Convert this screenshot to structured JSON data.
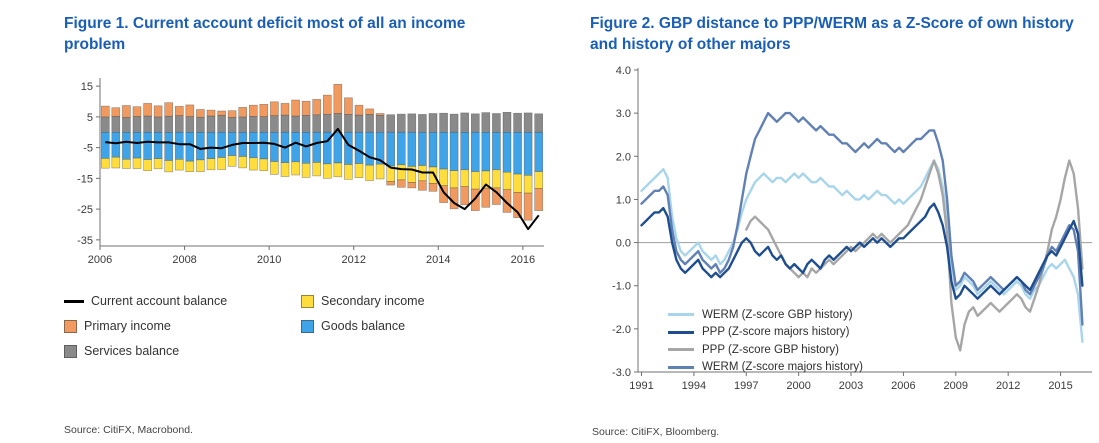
{
  "colors": {
    "title": "#1A5EB6",
    "axis": "#707070",
    "zero_line": "#a8a8a8"
  },
  "chart_data": [
    {
      "type": "bar",
      "title": "Figure 1. Current account deficit most of all an income problem",
      "source": "Source: CitiFX, Macrobond.",
      "x_start": 2006,
      "x_step_years": 0.25,
      "xticks": [
        2006,
        2008,
        2010,
        2012,
        2014,
        2016
      ],
      "yticks": [
        15,
        5,
        -5,
        -15,
        -25,
        -35
      ],
      "ylim": [
        -37,
        17
      ],
      "grid": false,
      "legend_position": "below",
      "series": [
        {
          "name": "Services balance",
          "type": "bar",
          "color": "#8A8A8A",
          "values": [
            5.0,
            5.2,
            4.8,
            5.1,
            5.3,
            5.0,
            5.2,
            5.4,
            5.1,
            4.9,
            5.3,
            5.5,
            4.8,
            5.0,
            5.2,
            5.1,
            5.4,
            5.6,
            5.3,
            5.5,
            5.7,
            5.9,
            6.1,
            5.8,
            5.6,
            5.8,
            5.5,
            5.7,
            5.9,
            6.0,
            5.8,
            6.1,
            6.2,
            5.9,
            6.3,
            6.0,
            6.4,
            6.1,
            6.5,
            6.2,
            6.3,
            6.0
          ]
        },
        {
          "name": "Goods balance",
          "type": "bar",
          "color": "#3FA3E8",
          "values": [
            -8.5,
            -8.1,
            -8.8,
            -8.4,
            -8.9,
            -8.6,
            -9.2,
            -8.8,
            -9.4,
            -9.0,
            -8.6,
            -8.2,
            -7.6,
            -7.9,
            -8.3,
            -8.7,
            -9.5,
            -9.9,
            -9.6,
            -10.1,
            -9.8,
            -10.3,
            -10.0,
            -10.5,
            -10.2,
            -10.7,
            -10.4,
            -10.9,
            -10.6,
            -11.1,
            -10.8,
            -11.3,
            -12.0,
            -12.5,
            -12.2,
            -12.8,
            -12.6,
            -12.2,
            -13.0,
            -13.6,
            -14.0,
            -12.8
          ]
        },
        {
          "name": "Secondary income",
          "type": "bar",
          "color": "#FFDD3C",
          "values": [
            -3.2,
            -3.5,
            -3.0,
            -3.4,
            -3.6,
            -3.3,
            -3.7,
            -3.5,
            -3.4,
            -3.8,
            -3.6,
            -3.9,
            -3.5,
            -3.7,
            -4.0,
            -3.8,
            -4.2,
            -4.5,
            -4.3,
            -4.6,
            -4.4,
            -4.7,
            -4.5,
            -4.8,
            -4.6,
            -5.0,
            -4.8,
            -5.1,
            -4.9,
            -5.2,
            -5.0,
            -5.3,
            -5.4,
            -5.6,
            -5.5,
            -5.7,
            -5.6,
            -5.9,
            -5.7,
            -6.0,
            -5.8,
            -5.5
          ]
        },
        {
          "name": "Primary income",
          "type": "bar",
          "color": "#F19A5F",
          "values": [
            3.5,
            2.8,
            3.9,
            3.2,
            4.1,
            3.6,
            4.4,
            3.0,
            3.8,
            2.5,
            1.9,
            1.4,
            2.2,
            3.1,
            3.6,
            4.0,
            4.5,
            3.8,
            5.2,
            4.6,
            5.0,
            6.2,
            9.5,
            5.4,
            3.2,
            1.8,
            0.6,
            -1.2,
            -2.4,
            -1.8,
            -3.1,
            -2.6,
            -5.5,
            -6.8,
            -5.9,
            -7.0,
            -6.2,
            -5.4,
            -7.4,
            -8.2,
            -8.8,
            -7.2
          ]
        },
        {
          "name": "Current account balance",
          "type": "line",
          "color": "#000000",
          "values": [
            -3.2,
            -3.6,
            -3.1,
            -3.5,
            -3.1,
            -3.3,
            -3.3,
            -3.9,
            -3.9,
            -5.4,
            -5.0,
            -5.2,
            -4.1,
            -3.5,
            -3.5,
            -3.4,
            -3.8,
            -5.0,
            -3.4,
            -4.6,
            -3.5,
            -2.9,
            1.1,
            -4.1,
            -6.0,
            -8.1,
            -9.1,
            -11.5,
            -12.0,
            -12.1,
            -13.1,
            -13.1,
            -19.5,
            -23.0,
            -25.0,
            -21.5,
            -17.0,
            -19.5,
            -23.0,
            -26.0,
            -31.5,
            -27.0
          ]
        }
      ]
    },
    {
      "type": "line",
      "title": "Figure 2. GBP distance to PPP/WERM as a Z-Score of own history and history of other majors",
      "source": "Source: CitiFX, Bloomberg.",
      "x_start": 1991,
      "x_step": 0.25,
      "xlim": [
        1990.8,
        2016.8
      ],
      "xticks": [
        1991,
        1994,
        1997,
        2000,
        2003,
        2006,
        2009,
        2012,
        2015
      ],
      "ylim": [
        -3,
        4
      ],
      "yticks": [
        4,
        3,
        2,
        1,
        0,
        -1,
        -2,
        -3
      ],
      "ytick_labels": [
        "4.0",
        "3.0",
        "2.0",
        "1.0",
        "0.0",
        "-1.0",
        "-2.0",
        "-3.0"
      ],
      "grid": false,
      "legend_position": "inside-bottom-left",
      "series": [
        {
          "name": "WERM (Z-score GBP history)",
          "color": "#A9D5EB",
          "values": [
            1.2,
            1.3,
            1.4,
            1.5,
            1.6,
            1.7,
            1.5,
            0.6,
            0.1,
            -0.2,
            -0.3,
            -0.2,
            -0.1,
            0.0,
            -0.2,
            -0.3,
            -0.4,
            -0.3,
            -0.5,
            -0.4,
            -0.2,
            0.0,
            0.3,
            0.7,
            1.0,
            1.2,
            1.4,
            1.5,
            1.6,
            1.5,
            1.4,
            1.5,
            1.5,
            1.4,
            1.5,
            1.6,
            1.5,
            1.6,
            1.5,
            1.4,
            1.4,
            1.5,
            1.4,
            1.3,
            1.3,
            1.2,
            1.1,
            1.2,
            1.1,
            1.0,
            1.0,
            1.1,
            1.0,
            1.1,
            1.2,
            1.1,
            1.1,
            1.0,
            0.9,
            1.0,
            0.9,
            1.0,
            1.1,
            1.2,
            1.3,
            1.5,
            1.7,
            1.9,
            1.7,
            1.3,
            0.6,
            -0.5,
            -1.1,
            -1.0,
            -0.8,
            -0.9,
            -1.0,
            -1.2,
            -1.1,
            -1.0,
            -0.9,
            -1.0,
            -1.1,
            -1.2,
            -1.1,
            -1.0,
            -0.9,
            -1.0,
            -1.2,
            -1.3,
            -1.1,
            -1.0,
            -0.8,
            -0.6,
            -0.5,
            -0.6,
            -0.5,
            -0.4,
            -0.6,
            -0.8,
            -1.2,
            -2.3
          ]
        },
        {
          "name": "PPP (Z-score majors history)",
          "color": "#1F4E8F",
          "values": [
            0.4,
            0.5,
            0.6,
            0.7,
            0.7,
            0.8,
            0.6,
            0.0,
            -0.4,
            -0.6,
            -0.7,
            -0.6,
            -0.5,
            -0.4,
            -0.6,
            -0.7,
            -0.8,
            -0.7,
            -0.8,
            -0.7,
            -0.6,
            -0.4,
            -0.2,
            0.0,
            0.1,
            0.0,
            -0.2,
            -0.3,
            -0.2,
            -0.1,
            -0.3,
            -0.4,
            -0.3,
            -0.5,
            -0.6,
            -0.5,
            -0.6,
            -0.7,
            -0.5,
            -0.4,
            -0.5,
            -0.6,
            -0.4,
            -0.3,
            -0.4,
            -0.3,
            -0.2,
            -0.1,
            -0.2,
            -0.1,
            0.0,
            -0.1,
            0.0,
            0.1,
            0.0,
            0.1,
            0.0,
            -0.1,
            0.0,
            0.1,
            0.1,
            0.2,
            0.3,
            0.4,
            0.5,
            0.6,
            0.8,
            0.9,
            0.7,
            0.4,
            -0.1,
            -0.9,
            -1.3,
            -1.2,
            -1.0,
            -1.1,
            -1.2,
            -1.3,
            -1.2,
            -1.1,
            -1.0,
            -1.1,
            -1.2,
            -1.1,
            -1.0,
            -0.9,
            -0.8,
            -0.9,
            -1.0,
            -1.1,
            -0.9,
            -0.7,
            -0.5,
            -0.3,
            -0.2,
            -0.3,
            -0.1,
            0.1,
            0.3,
            0.5,
            0.2,
            -1.0
          ]
        },
        {
          "name": "PPP (Z-score GBP history)",
          "color": "#A6A6A6",
          "values": [
            null,
            null,
            null,
            null,
            null,
            null,
            null,
            null,
            null,
            null,
            null,
            null,
            null,
            null,
            null,
            null,
            null,
            null,
            null,
            null,
            null,
            null,
            null,
            null,
            0.3,
            0.5,
            0.6,
            0.5,
            0.4,
            0.3,
            0.1,
            -0.1,
            -0.3,
            -0.5,
            -0.6,
            -0.7,
            -0.8,
            -0.7,
            -0.8,
            -0.6,
            -0.7,
            -0.6,
            -0.5,
            -0.4,
            -0.5,
            -0.4,
            -0.3,
            -0.2,
            -0.1,
            -0.2,
            -0.1,
            0.0,
            0.1,
            0.2,
            0.1,
            0.2,
            0.1,
            0.0,
            0.1,
            0.2,
            0.3,
            0.4,
            0.6,
            0.8,
            1.0,
            1.3,
            1.6,
            1.9,
            1.6,
            1.1,
            0.2,
            -1.4,
            -2.2,
            -2.5,
            -1.9,
            -1.6,
            -1.5,
            -1.7,
            -1.6,
            -1.5,
            -1.4,
            -1.5,
            -1.6,
            -1.5,
            -1.4,
            -1.3,
            -1.2,
            -1.3,
            -1.5,
            -1.6,
            -1.3,
            -1.0,
            -0.6,
            -0.2,
            0.3,
            0.6,
            1.0,
            1.5,
            1.9,
            1.6,
            0.8,
            -0.6
          ]
        },
        {
          "name": "WERM (Z-score majors history)",
          "color": "#6180B4",
          "values": [
            0.9,
            1.0,
            1.1,
            1.2,
            1.2,
            1.3,
            1.1,
            0.3,
            -0.2,
            -0.4,
            -0.5,
            -0.4,
            -0.3,
            -0.2,
            -0.4,
            -0.5,
            -0.6,
            -0.5,
            -0.7,
            -0.6,
            -0.4,
            -0.1,
            0.4,
            1.0,
            1.6,
            2.0,
            2.4,
            2.6,
            2.8,
            3.0,
            2.9,
            2.8,
            2.9,
            3.0,
            3.0,
            2.9,
            2.8,
            2.9,
            2.8,
            2.7,
            2.6,
            2.7,
            2.6,
            2.5,
            2.5,
            2.4,
            2.3,
            2.3,
            2.2,
            2.1,
            2.2,
            2.3,
            2.2,
            2.3,
            2.4,
            2.3,
            2.3,
            2.2,
            2.1,
            2.2,
            2.1,
            2.2,
            2.3,
            2.4,
            2.4,
            2.5,
            2.6,
            2.6,
            2.3,
            1.9,
            1.0,
            -0.3,
            -1.0,
            -0.9,
            -0.7,
            -0.8,
            -0.9,
            -1.1,
            -1.0,
            -0.9,
            -0.8,
            -0.9,
            -1.0,
            -1.1,
            -1.0,
            -0.9,
            -0.8,
            -0.9,
            -1.1,
            -1.2,
            -1.0,
            -0.8,
            -0.6,
            -0.3,
            -0.1,
            -0.2,
            0.0,
            0.2,
            0.4,
            0.3,
            -0.2,
            -1.9
          ]
        }
      ]
    }
  ]
}
